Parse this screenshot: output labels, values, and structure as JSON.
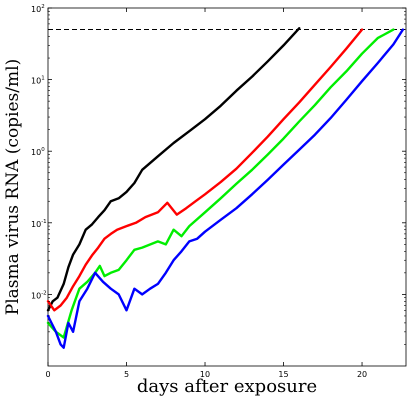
{
  "chart_data": {
    "type": "line",
    "title": "",
    "xlabel": "days after exposure",
    "ylabel": "Plasma virus RNA (copies/ml)",
    "xlim": [
      0,
      22.8
    ],
    "ylim": [
      0.001,
      100
    ],
    "yscale": "log",
    "grid": false,
    "x_ticks": [
      {
        "value": 0,
        "label": "0"
      },
      {
        "value": 5,
        "label": "5"
      },
      {
        "value": 10,
        "label": "10"
      },
      {
        "value": 15,
        "label": "15"
      },
      {
        "value": 20,
        "label": "20"
      }
    ],
    "y_ticks": [
      {
        "value": 0.01,
        "base": "10",
        "exp": "-2"
      },
      {
        "value": 0.1,
        "base": "10",
        "exp": "-1"
      },
      {
        "value": 1,
        "base": "10",
        "exp": "0"
      },
      {
        "value": 10,
        "base": "10",
        "exp": "1"
      },
      {
        "value": 100,
        "base": "10",
        "exp": "2"
      }
    ],
    "reference_line": {
      "y": 50,
      "style": "dashed",
      "color": "#000000"
    },
    "series": [
      {
        "color": "#000000",
        "x": [
          0,
          0.3,
          0.6,
          1.0,
          1.3,
          1.6,
          2.0,
          2.4,
          2.8,
          3.2,
          3.6,
          4.0,
          4.5,
          5.0,
          5.5,
          6.0,
          7.0,
          8.0,
          9.0,
          10.0,
          11.0,
          12.0,
          13.0,
          14.0,
          15.0,
          16.0
        ],
        "y": [
          0.006,
          0.008,
          0.009,
          0.014,
          0.024,
          0.036,
          0.05,
          0.08,
          0.095,
          0.12,
          0.15,
          0.2,
          0.22,
          0.27,
          0.36,
          0.55,
          0.85,
          1.3,
          1.9,
          2.8,
          4.3,
          7.0,
          11.0,
          18.0,
          30.0,
          52.0
        ]
      },
      {
        "color": "#ff0000",
        "x": [
          0,
          0.4,
          0.8,
          1.2,
          1.6,
          2.0,
          2.4,
          2.8,
          3.2,
          3.6,
          4.0,
          4.4,
          5.0,
          5.6,
          6.2,
          7.0,
          7.6,
          8.2,
          8.8,
          9.4,
          10.0,
          11.0,
          12.0,
          13.0,
          14.0,
          15.0,
          16.0,
          17.0,
          18.0,
          19.0,
          20.0
        ],
        "y": [
          0.008,
          0.006,
          0.007,
          0.009,
          0.013,
          0.018,
          0.026,
          0.035,
          0.045,
          0.06,
          0.07,
          0.08,
          0.09,
          0.1,
          0.12,
          0.14,
          0.19,
          0.13,
          0.16,
          0.2,
          0.25,
          0.37,
          0.57,
          0.95,
          1.6,
          2.8,
          4.8,
          8.5,
          15.0,
          27.0,
          50.0
        ]
      },
      {
        "color": "#00ee00",
        "x": [
          0,
          0.5,
          1.0,
          1.5,
          2.0,
          2.5,
          3.0,
          3.3,
          3.6,
          4.0,
          4.5,
          5.0,
          5.5,
          6.0,
          7.0,
          7.5,
          8.0,
          8.5,
          9.0,
          10.0,
          11.0,
          12.0,
          13.0,
          14.0,
          15.0,
          16.0,
          17.0,
          18.0,
          19.0,
          20.0,
          21.0,
          22.0
        ],
        "y": [
          0.004,
          0.003,
          0.0025,
          0.006,
          0.012,
          0.015,
          0.02,
          0.025,
          0.018,
          0.02,
          0.022,
          0.03,
          0.042,
          0.045,
          0.055,
          0.05,
          0.08,
          0.065,
          0.09,
          0.14,
          0.22,
          0.35,
          0.55,
          0.9,
          1.5,
          2.6,
          4.4,
          7.8,
          13.0,
          23.0,
          38.0,
          50.0
        ]
      },
      {
        "color": "#0000ff",
        "x": [
          0,
          0.5,
          0.8,
          1.0,
          1.3,
          1.6,
          2.0,
          2.5,
          3.0,
          3.5,
          4.0,
          4.5,
          5.0,
          5.5,
          6.0,
          6.5,
          7.0,
          7.5,
          8.0,
          8.5,
          9.0,
          9.5,
          10.0,
          11.0,
          12.0,
          13.0,
          14.0,
          15.0,
          16.0,
          17.0,
          18.0,
          19.0,
          20.0,
          21.0,
          22.0,
          22.6
        ],
        "y": [
          0.005,
          0.003,
          0.002,
          0.0018,
          0.004,
          0.003,
          0.008,
          0.012,
          0.02,
          0.015,
          0.012,
          0.01,
          0.006,
          0.012,
          0.01,
          0.012,
          0.014,
          0.02,
          0.03,
          0.04,
          0.055,
          0.06,
          0.075,
          0.11,
          0.16,
          0.25,
          0.4,
          0.65,
          1.05,
          1.7,
          2.9,
          5.2,
          9.5,
          17.0,
          31.0,
          50.0
        ]
      }
    ]
  }
}
